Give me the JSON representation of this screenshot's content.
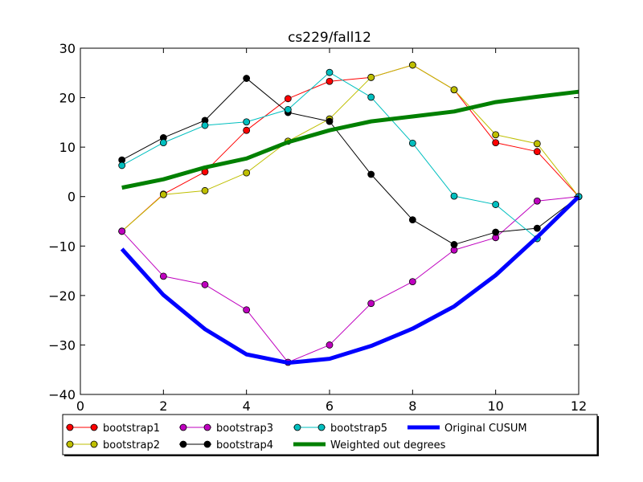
{
  "chart_data": {
    "type": "line",
    "title": "cs229/fall12",
    "xlabel": "",
    "ylabel": "",
    "xlim": [
      0,
      12
    ],
    "ylim": [
      -40,
      30
    ],
    "xticks": [
      0,
      2,
      4,
      6,
      8,
      10,
      12
    ],
    "yticks": [
      -40,
      -30,
      -20,
      -10,
      0,
      10,
      20,
      30
    ],
    "xtick_labels": [
      "0",
      "2",
      "4",
      "6",
      "8",
      "10",
      "12"
    ],
    "ytick_labels": [
      "−40",
      "−30",
      "−20",
      "−10",
      "0",
      "10",
      "20",
      "30"
    ],
    "grid": false,
    "legend_position": "below",
    "series": [
      {
        "name": "bootstrap1",
        "color": "#ff0000",
        "marker": "circle",
        "linewidth": 1,
        "x": [
          1,
          2,
          3,
          4,
          5,
          6,
          7,
          8,
          9,
          10,
          11,
          12
        ],
        "y": [
          -7,
          0.5,
          5,
          13.4,
          19.8,
          23.3,
          24.1,
          26.6,
          21.6,
          10.9,
          9.1,
          0
        ]
      },
      {
        "name": "bootstrap2",
        "color": "#bfbf00",
        "marker": "circle",
        "linewidth": 1,
        "x": [
          1,
          2,
          3,
          4,
          5,
          6,
          7,
          8,
          9,
          10,
          11,
          12
        ],
        "y": [
          -7,
          0.4,
          1.2,
          4.8,
          11.2,
          15.7,
          24.1,
          26.6,
          21.6,
          12.5,
          10.7,
          0
        ]
      },
      {
        "name": "bootstrap3",
        "color": "#bf00bf",
        "marker": "circle",
        "linewidth": 1,
        "x": [
          1,
          2,
          3,
          4,
          5,
          6,
          7,
          8,
          9,
          10,
          11,
          12
        ],
        "y": [
          -7,
          -16.1,
          -17.8,
          -22.9,
          -33.5,
          -30,
          -21.6,
          -17.2,
          -10.8,
          -8.3,
          -0.9,
          0
        ]
      },
      {
        "name": "bootstrap4",
        "color": "#000000",
        "marker": "circle",
        "linewidth": 1,
        "x": [
          1,
          2,
          3,
          4,
          5,
          6,
          7,
          8,
          9,
          10,
          11,
          12
        ],
        "y": [
          7.4,
          11.9,
          15.4,
          23.9,
          17,
          15.2,
          4.5,
          -4.7,
          -9.7,
          -7.2,
          -6.4,
          0
        ]
      },
      {
        "name": "bootstrap5",
        "color": "#00bfbf",
        "marker": "circle",
        "linewidth": 1,
        "x": [
          1,
          2,
          3,
          4,
          5,
          6,
          7,
          8,
          9,
          10,
          11,
          12
        ],
        "y": [
          6.3,
          10.9,
          14.4,
          15.1,
          17.6,
          25.1,
          20.1,
          10.8,
          0.1,
          -1.6,
          -8.5,
          0
        ]
      },
      {
        "name": "Weighted out degrees",
        "color": "#008000",
        "marker": "none",
        "linewidth": 5,
        "x": [
          1,
          2,
          3,
          4,
          5,
          6,
          7,
          8,
          9,
          10,
          11,
          12
        ],
        "y": [
          1.8,
          3.5,
          5.9,
          7.7,
          11,
          13.4,
          15.2,
          16.2,
          17.2,
          19.1,
          20.2,
          21.2
        ]
      },
      {
        "name": "Original CUSUM",
        "color": "#0000ff",
        "marker": "none",
        "linewidth": 5,
        "x": [
          1,
          2,
          3,
          4,
          5,
          6,
          7,
          8,
          9,
          10,
          11,
          12
        ],
        "y": [
          -10.6,
          -19.9,
          -26.8,
          -31.9,
          -33.6,
          -32.8,
          -30.2,
          -26.7,
          -22.2,
          -15.9,
          -8.2,
          0
        ]
      }
    ],
    "legend_order": [
      "bootstrap1",
      "bootstrap2",
      "bootstrap3",
      "bootstrap4",
      "bootstrap5",
      "Weighted out degrees",
      "Original CUSUM"
    ]
  }
}
